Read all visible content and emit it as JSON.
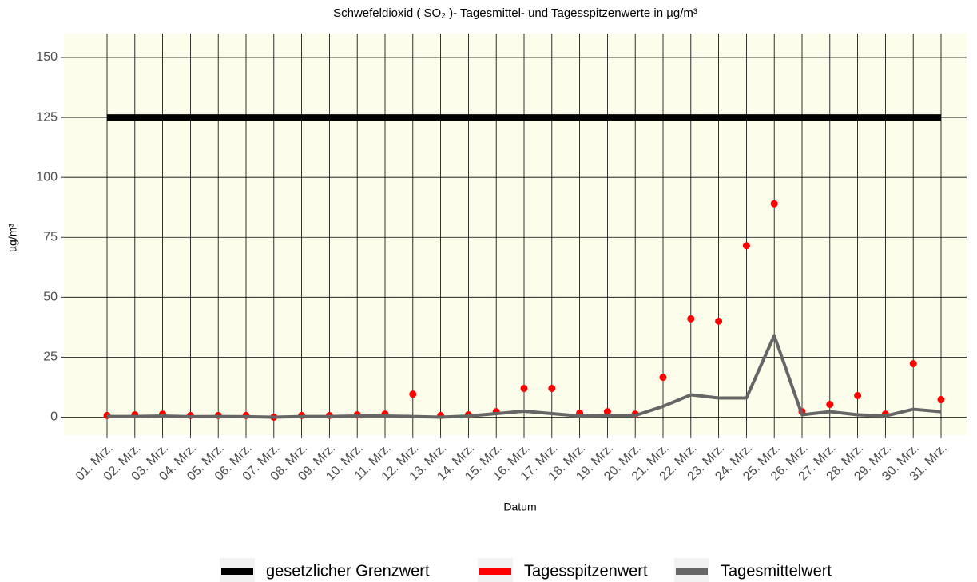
{
  "chart_data": {
    "type": "line",
    "title": "Schwefeldioxid ( SO₂ )- Tagesmittel- und Tagesspitzenwerte in µg/m³",
    "x_label": "Datum",
    "y_label": "µg/m³",
    "categories": [
      "01. Mrz.",
      "02. Mrz.",
      "03. Mrz.",
      "04. Mrz.",
      "05. Mrz.",
      "06. Mrz.",
      "07. Mrz.",
      "08. Mrz.",
      "09. Mrz.",
      "10. Mrz.",
      "11. Mrz.",
      "12. Mrz.",
      "13. Mrz.",
      "14. Mrz.",
      "15. Mrz.",
      "16. Mrz.",
      "17. Mrz.",
      "18. Mrz.",
      "19. Mrz.",
      "20. Mrz.",
      "21. Mrz.",
      "22. Mrz.",
      "23. Mrz.",
      "24. Mrz.",
      "25. Mrz.",
      "26. Mrz.",
      "27. Mrz.",
      "28. Mrz.",
      "29. Mrz.",
      "30. Mrz.",
      "31. Mrz."
    ],
    "series": [
      {
        "name": "gesetzlicher Grenzwert",
        "color": "#000000",
        "mode": "line",
        "values": [
          125,
          125,
          125,
          125,
          125,
          125,
          125,
          125,
          125,
          125,
          125,
          125,
          125,
          125,
          125,
          125,
          125,
          125,
          125,
          125,
          125,
          125,
          125,
          125,
          125,
          125,
          125,
          125,
          125,
          125,
          125
        ]
      },
      {
        "name": "Tagesspitzenwert",
        "color": "#ff0000",
        "mode": "points",
        "values": [
          0.7,
          1,
          1.3,
          0.7,
          0.7,
          0.7,
          0,
          0.7,
          0.7,
          1,
          1.3,
          9.6,
          0.7,
          1,
          2.3,
          12,
          12,
          1.7,
          2.3,
          1.3,
          16.6,
          41,
          40,
          71.5,
          89,
          2.3,
          5.3,
          9,
          1.3,
          22.3,
          7.3
        ]
      },
      {
        "name": "Tagesmittelwert",
        "color": "#666666",
        "mode": "line",
        "values": [
          0.3,
          0.3,
          0.5,
          0.2,
          0.3,
          0.2,
          0,
          0.3,
          0.3,
          0.5,
          0.5,
          0.3,
          0,
          0.5,
          1.5,
          2.5,
          1.5,
          0.5,
          0.7,
          0.7,
          4.5,
          9.3,
          8,
          8,
          34,
          1,
          2.3,
          1,
          0.5,
          3.3,
          2.3
        ]
      }
    ],
    "ylim": [
      -7.5,
      160
    ],
    "yticks": [
      0,
      25,
      50,
      75,
      100,
      125,
      150
    ],
    "grid": true,
    "legend": "bottom"
  }
}
